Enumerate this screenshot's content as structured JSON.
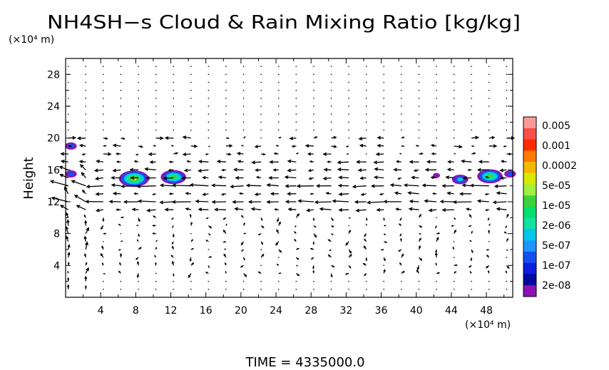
{
  "chart_data": {
    "type": "heatmap",
    "title": "NH4SH−s Cloud & Rain Mixing Ratio [kg/kg]",
    "ylabel": "Height",
    "y_unit": "(×10⁴ m)",
    "x_unit": "(×10⁴ m)",
    "xlim": [
      0,
      51
    ],
    "ylim": [
      0,
      30
    ],
    "x_ticks": [
      "4",
      "8",
      "12",
      "16",
      "20",
      "24",
      "28",
      "32",
      "36",
      "40",
      "44",
      "48"
    ],
    "y_ticks": [
      "4",
      "8",
      "12",
      "16",
      "20",
      "24",
      "28"
    ],
    "colorbar": {
      "labels": [
        "0.005",
        "0.001",
        "0.0002",
        "5e-05",
        "1e-05",
        "2e-06",
        "5e-07",
        "1e-07",
        "2e-08"
      ],
      "colors": [
        "#fa9a98",
        "#f5504a",
        "#ff2a00",
        "#ff7a00",
        "#f5b800",
        "#d8e800",
        "#a0f03c",
        "#3cd23c",
        "#00e070",
        "#14e0a0",
        "#00c8e6",
        "#1e96ff",
        "#1450f0",
        "#0a1edc",
        "#000a9c",
        "#8c14b4"
      ]
    },
    "blobs": [
      {
        "x": 0.6,
        "y": 19.0,
        "value": "1e-07"
      },
      {
        "x": 0.6,
        "y": 15.5,
        "value": "1e-07"
      },
      {
        "x": 7.8,
        "y": 14.9,
        "value": "5e-05"
      },
      {
        "x": 12.3,
        "y": 15.1,
        "value": "1e-05"
      },
      {
        "x": 42.3,
        "y": 15.3,
        "value": "2e-08"
      },
      {
        "x": 45.0,
        "y": 14.8,
        "value": "5e-07"
      },
      {
        "x": 48.4,
        "y": 15.2,
        "value": "1e-05"
      },
      {
        "x": 50.7,
        "y": 15.5,
        "value": "1e-07"
      }
    ]
  },
  "time_label": "TIME  =  4335000.0"
}
